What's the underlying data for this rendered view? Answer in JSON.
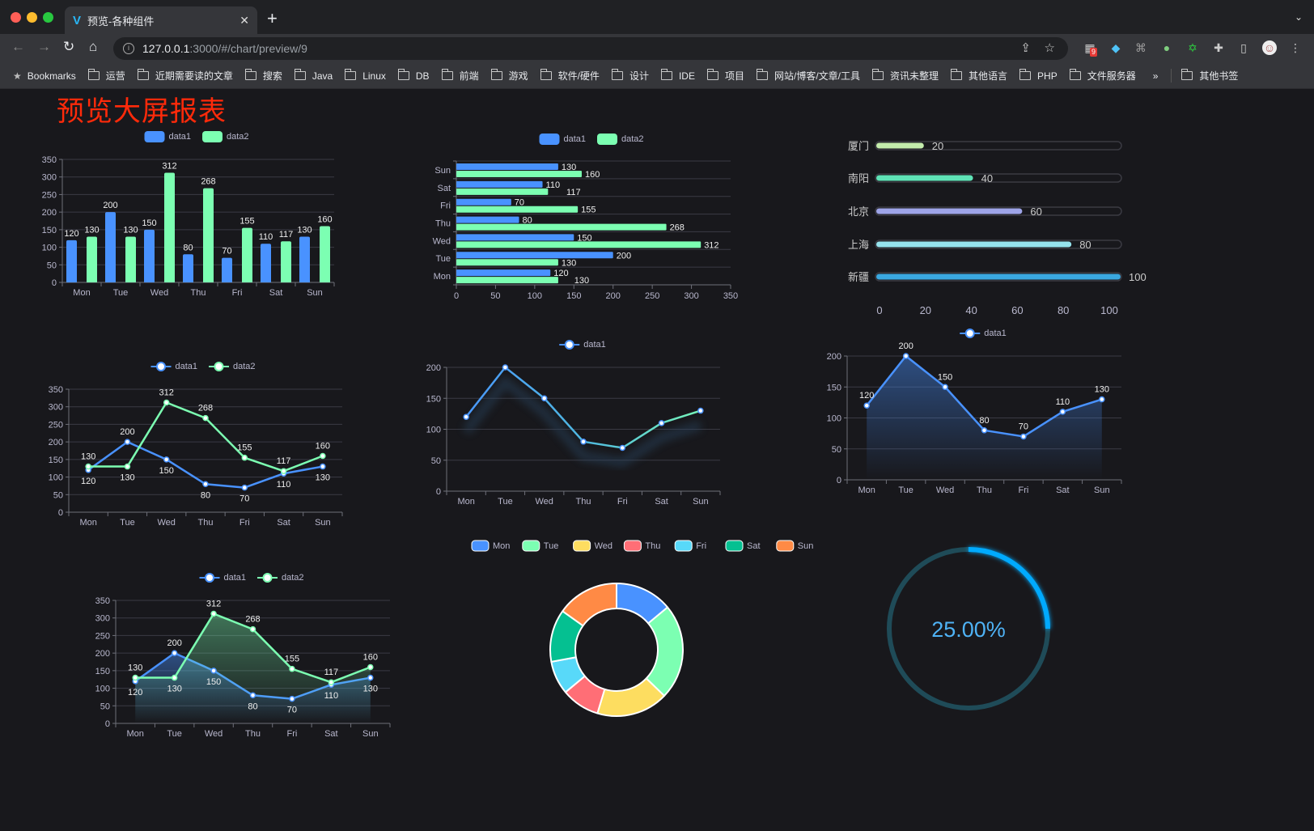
{
  "browser": {
    "tab_title": "预览-各种组件",
    "url_host": "127.0.0.1",
    "url_rest": ":3000/#/chart/preview/9",
    "extension_badge": "9",
    "bookmarks_label": "Bookmarks",
    "bookmarks": [
      "运营",
      "近期需要读的文章",
      "搜索",
      "Java",
      "Linux",
      "DB",
      "前端",
      "游戏",
      "软件/硬件",
      "设计",
      "IDE",
      "项目",
      "网站/博客/文章/工具",
      "资讯未整理",
      "其他语言",
      "PHP",
      "文件服务器"
    ],
    "overflow": "»",
    "other_bookmarks": "其他书签"
  },
  "page": {
    "title": "预览大屏报表",
    "title_color": "#ff2a0a",
    "background": "#18181c"
  },
  "colors": {
    "blue": "#4992ff",
    "green": "#7cffb2",
    "yellow": "#fddd60",
    "red": "#ff6e76",
    "cyan": "#58d9f9",
    "teal": "#05c091",
    "orange": "#ff8a45"
  },
  "chart_data": [
    {
      "type": "bar",
      "categories": [
        "Mon",
        "Tue",
        "Wed",
        "Thu",
        "Fri",
        "Sat",
        "Sun"
      ],
      "ylim": [
        0,
        350
      ],
      "yticks": [
        0,
        50,
        100,
        150,
        200,
        250,
        300,
        350
      ],
      "grid": true,
      "legend": "top",
      "series": [
        {
          "name": "data1",
          "values": [
            120,
            200,
            150,
            80,
            70,
            110,
            130
          ],
          "color": "#4992ff"
        },
        {
          "name": "data2",
          "values": [
            130,
            130,
            312,
            268,
            155,
            117,
            160
          ],
          "color": "#7cffb2"
        }
      ]
    },
    {
      "type": "bar",
      "orientation": "horizontal",
      "categories": [
        "Mon",
        "Tue",
        "Wed",
        "Thu",
        "Fri",
        "Sat",
        "Sun"
      ],
      "xlim": [
        0,
        350
      ],
      "xticks": [
        0,
        50,
        100,
        150,
        200,
        250,
        300,
        350
      ],
      "grid": true,
      "legend": "top",
      "series": [
        {
          "name": "data1",
          "values": [
            120,
            200,
            150,
            80,
            70,
            110,
            130
          ],
          "color": "#4992ff"
        },
        {
          "name": "data2",
          "values": [
            130,
            130,
            312,
            268,
            155,
            117,
            160
          ],
          "color": "#7cffb2"
        }
      ]
    },
    {
      "type": "bar",
      "subtype": "progress",
      "categories": [
        "厦门",
        "南阳",
        "北京",
        "上海",
        "新疆"
      ],
      "values": [
        20,
        40,
        60,
        80,
        100
      ],
      "xlim": [
        0,
        100
      ],
      "xticks": [
        0,
        20,
        40,
        60,
        80,
        100
      ],
      "colors": [
        "#c4ecac",
        "#5fe3b6",
        "#9ea4e8",
        "#96e3ed",
        "#3aa8e0"
      ]
    },
    {
      "type": "line",
      "categories": [
        "Mon",
        "Tue",
        "Wed",
        "Thu",
        "Fri",
        "Sat",
        "Sun"
      ],
      "ylim": [
        0,
        350
      ],
      "yticks": [
        0,
        50,
        100,
        150,
        200,
        250,
        300,
        350
      ],
      "grid": true,
      "legend": "top",
      "series": [
        {
          "name": "data1",
          "values": [
            120,
            200,
            150,
            80,
            70,
            110,
            130
          ],
          "color": "#4992ff"
        },
        {
          "name": "data2",
          "values": [
            130,
            130,
            312,
            268,
            155,
            117,
            160
          ],
          "color": "#7cffb2"
        }
      ]
    },
    {
      "type": "line",
      "categories": [
        "Mon",
        "Tue",
        "Wed",
        "Thu",
        "Fri",
        "Sat",
        "Sun"
      ],
      "ylim": [
        0,
        200
      ],
      "yticks": [
        0,
        50,
        100,
        150,
        200
      ],
      "grid": true,
      "legend": "top",
      "gradient": [
        "#4992ff",
        "#7cffb2"
      ],
      "series": [
        {
          "name": "data1",
          "values": [
            120,
            200,
            150,
            80,
            70,
            110,
            130
          ],
          "color": "#4992ff"
        }
      ]
    },
    {
      "type": "area",
      "categories": [
        "Mon",
        "Tue",
        "Wed",
        "Thu",
        "Fri",
        "Sat",
        "Sun"
      ],
      "ylim": [
        0,
        200
      ],
      "yticks": [
        0,
        50,
        100,
        150,
        200
      ],
      "grid": true,
      "legend": "top",
      "series": [
        {
          "name": "data1",
          "values": [
            120,
            200,
            150,
            80,
            70,
            110,
            130
          ],
          "color": "#4992ff"
        }
      ]
    },
    {
      "type": "area",
      "categories": [
        "Mon",
        "Tue",
        "Wed",
        "Thu",
        "Fri",
        "Sat",
        "Sun"
      ],
      "ylim": [
        0,
        350
      ],
      "yticks": [
        0,
        50,
        100,
        150,
        200,
        250,
        300,
        350
      ],
      "grid": true,
      "legend": "top",
      "series": [
        {
          "name": "data1",
          "values": [
            120,
            200,
            150,
            80,
            70,
            110,
            130
          ],
          "color": "#4992ff"
        },
        {
          "name": "data2",
          "values": [
            130,
            130,
            312,
            268,
            155,
            117,
            160
          ],
          "color": "#7cffb2"
        }
      ]
    },
    {
      "type": "pie",
      "subtype": "donut",
      "categories": [
        "Mon",
        "Tue",
        "Wed",
        "Thu",
        "Fri",
        "Sat",
        "Sun"
      ],
      "values": [
        120,
        200,
        150,
        80,
        70,
        110,
        130
      ],
      "colors": [
        "#4992ff",
        "#7cffb2",
        "#fddd60",
        "#ff6e76",
        "#58d9f9",
        "#05c091",
        "#ff8a45"
      ],
      "legend": "top"
    },
    {
      "type": "gauge",
      "subtype": "ring-progress",
      "value": 25,
      "label": "25.00%",
      "color": "#00aaff",
      "track_color": "#1f4b58"
    }
  ]
}
